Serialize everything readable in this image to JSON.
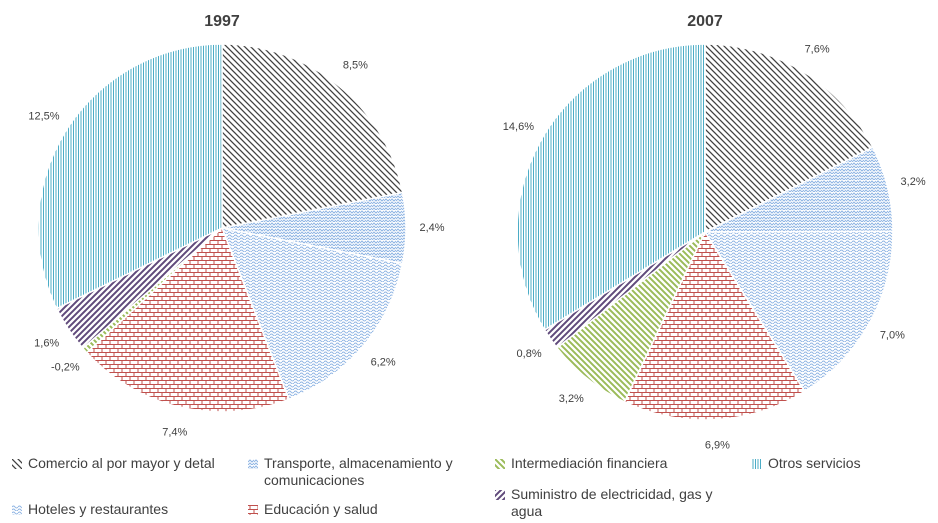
{
  "chart_data": {
    "type": "pie",
    "categories": [
      "Comercio al por mayor y detal",
      "Transporte, almacenamiento y comunicaciones",
      "Hoteles y restaurantes",
      "Educación y salud",
      "Intermediación financiera",
      "Suministro de electricidad, gas y agua",
      "Otros servicios"
    ],
    "colors": [
      "#404040",
      "#8eb4e3",
      "#8eb4e3",
      "#c0504d",
      "#9bbb59",
      "#604a7b",
      "#4bacc6"
    ],
    "series": [
      {
        "name": "1997",
        "values": [
          8.5,
          2.4,
          6.2,
          7.4,
          -0.2,
          1.6,
          12.5
        ],
        "value_labels": [
          "8,5%",
          "2,4%",
          "6,2%",
          "7,4%",
          "-0,2%",
          "1,6%",
          "12,5%"
        ]
      },
      {
        "name": "2007",
        "values": [
          7.6,
          3.2,
          7.0,
          6.9,
          3.2,
          0.8,
          14.6
        ],
        "value_labels": [
          "7,6%",
          "3,2%",
          "7,0%",
          "6,9%",
          "3,2%",
          "0,8%",
          "14,6%"
        ]
      }
    ]
  }
}
